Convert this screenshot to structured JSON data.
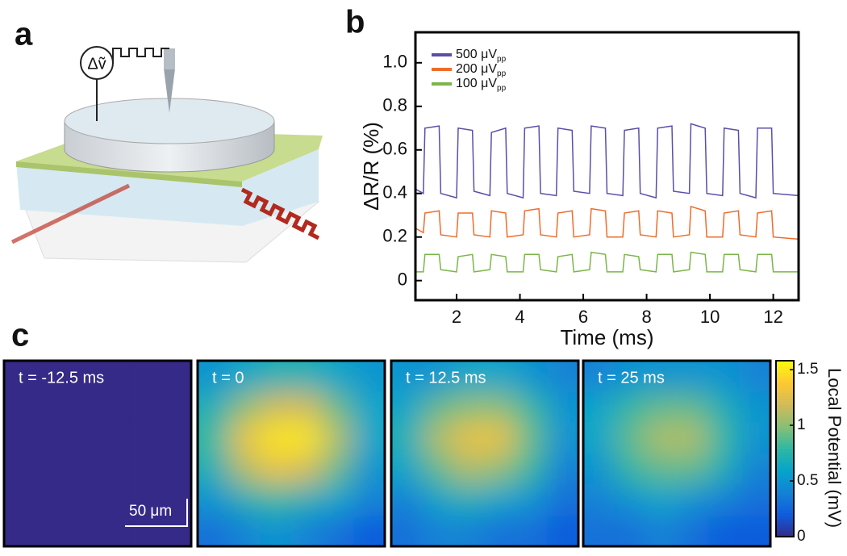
{
  "panel_labels": [
    "a",
    "b",
    "c"
  ],
  "diagram": {
    "label": "Δṽ"
  },
  "chart_data": [
    {
      "type": "line",
      "xlabel": "Time (ms)",
      "ylabel": "ΔR/R (%)",
      "xlim": [
        0.7,
        12.8
      ],
      "ylim": [
        -0.09,
        1.14
      ],
      "xticks": [
        2,
        4,
        6,
        8,
        10,
        12
      ],
      "yticks": [
        0,
        0.2,
        0.4,
        0.6,
        0.8,
        {
          "value": 1,
          "label": "1.0"
        }
      ],
      "legend_subscript": "pp",
      "x": [
        0.7,
        0.95,
        1.0,
        1.45,
        1.5,
        2.0,
        2.05,
        2.5,
        2.55,
        3.05,
        3.1,
        3.55,
        3.6,
        4.1,
        4.15,
        4.6,
        4.65,
        5.15,
        5.2,
        5.65,
        5.7,
        6.2,
        6.25,
        6.7,
        6.75,
        7.25,
        7.3,
        7.75,
        7.8,
        8.3,
        8.35,
        8.8,
        8.85,
        9.35,
        9.4,
        9.85,
        9.9,
        10.4,
        10.45,
        10.9,
        10.95,
        11.45,
        11.5,
        11.95,
        12.0,
        12.8
      ],
      "series": [
        {
          "name": "500 μV",
          "color": "#5b4ea8",
          "values": [
            0.42,
            0.4,
            0.7,
            0.71,
            0.4,
            0.38,
            0.7,
            0.69,
            0.41,
            0.39,
            0.68,
            0.7,
            0.4,
            0.38,
            0.7,
            0.71,
            0.4,
            0.39,
            0.7,
            0.69,
            0.41,
            0.4,
            0.71,
            0.7,
            0.4,
            0.39,
            0.69,
            0.7,
            0.4,
            0.38,
            0.7,
            0.71,
            0.41,
            0.4,
            0.72,
            0.7,
            0.4,
            0.39,
            0.7,
            0.69,
            0.4,
            0.38,
            0.7,
            0.7,
            0.4,
            0.39
          ]
        },
        {
          "name": "200 μV",
          "color": "#ef6c2a",
          "values": [
            0.24,
            0.22,
            0.31,
            0.32,
            0.21,
            0.2,
            0.31,
            0.31,
            0.21,
            0.2,
            0.32,
            0.31,
            0.2,
            0.21,
            0.32,
            0.33,
            0.21,
            0.2,
            0.31,
            0.32,
            0.2,
            0.21,
            0.33,
            0.32,
            0.2,
            0.2,
            0.31,
            0.32,
            0.21,
            0.2,
            0.32,
            0.31,
            0.2,
            0.21,
            0.34,
            0.32,
            0.2,
            0.2,
            0.31,
            0.32,
            0.21,
            0.2,
            0.31,
            0.32,
            0.2,
            0.19
          ]
        },
        {
          "name": "100 μV",
          "color": "#7ab648",
          "values": [
            0.04,
            0.04,
            0.12,
            0.12,
            0.05,
            0.04,
            0.11,
            0.12,
            0.04,
            0.05,
            0.12,
            0.11,
            0.04,
            0.04,
            0.12,
            0.12,
            0.05,
            0.04,
            0.11,
            0.12,
            0.04,
            0.05,
            0.13,
            0.12,
            0.04,
            0.04,
            0.12,
            0.11,
            0.05,
            0.04,
            0.12,
            0.12,
            0.04,
            0.05,
            0.13,
            0.12,
            0.04,
            0.04,
            0.12,
            0.12,
            0.05,
            0.04,
            0.12,
            0.12,
            0.04,
            0.04
          ]
        }
      ]
    },
    {
      "type": "heatmap",
      "colorbar_label": "Local Potential (mV)",
      "scale_bar": "50 μm",
      "zlim": [
        0,
        1.58
      ],
      "zticks": [
        0,
        0.5,
        1,
        1.5
      ],
      "colormap": [
        "#352a87",
        "#0f5cdd",
        "#1481d6",
        "#06a4ca",
        "#2eb7a4",
        "#87bf77",
        "#d1bb59",
        "#fec832",
        "#f9fb0e"
      ],
      "frames": [
        {
          "label": "t = -12.5 ms",
          "values": [
            [
              0,
              0,
              0,
              0,
              0,
              0
            ],
            [
              0,
              0,
              0,
              0,
              0,
              0
            ],
            [
              0,
              0,
              0,
              0,
              0,
              0
            ],
            [
              0,
              0,
              0,
              0,
              0,
              0
            ],
            [
              0,
              0,
              0,
              0,
              0,
              0
            ],
            [
              0,
              0,
              0,
              0,
              0,
              0
            ]
          ]
        },
        {
          "label": "t = 0",
          "values": [
            [
              0.5,
              0.6,
              0.7,
              0.7,
              0.6,
              0.5
            ],
            [
              0.7,
              1.0,
              1.2,
              1.2,
              0.9,
              0.6
            ],
            [
              0.8,
              1.3,
              1.5,
              1.5,
              1.1,
              0.6
            ],
            [
              0.7,
              1.1,
              1.3,
              1.2,
              0.9,
              0.5
            ],
            [
              0.5,
              0.7,
              0.8,
              0.7,
              0.6,
              0.4
            ],
            [
              0.3,
              0.4,
              0.5,
              0.4,
              0.3,
              0.2
            ]
          ]
        },
        {
          "label": "t = 12.5 ms",
          "values": [
            [
              0.5,
              0.5,
              0.6,
              0.6,
              0.5,
              0.4
            ],
            [
              0.6,
              0.9,
              1.0,
              1.0,
              0.8,
              0.5
            ],
            [
              0.7,
              1.1,
              1.3,
              1.3,
              0.9,
              0.5
            ],
            [
              0.6,
              0.9,
              1.1,
              1.0,
              0.8,
              0.4
            ],
            [
              0.4,
              0.6,
              0.7,
              0.6,
              0.5,
              0.3
            ],
            [
              0.3,
              0.4,
              0.4,
              0.3,
              0.3,
              0.2
            ]
          ]
        },
        {
          "label": "t = 25 ms",
          "values": [
            [
              0.4,
              0.5,
              0.5,
              0.5,
              0.5,
              0.4
            ],
            [
              0.6,
              0.8,
              0.9,
              0.9,
              0.7,
              0.5
            ],
            [
              0.6,
              0.9,
              1.1,
              1.1,
              0.8,
              0.5
            ],
            [
              0.5,
              0.8,
              0.9,
              0.9,
              0.7,
              0.4
            ],
            [
              0.4,
              0.5,
              0.6,
              0.5,
              0.4,
              0.3
            ],
            [
              0.3,
              0.3,
              0.4,
              0.3,
              0.2,
              0.2
            ]
          ]
        }
      ]
    }
  ]
}
